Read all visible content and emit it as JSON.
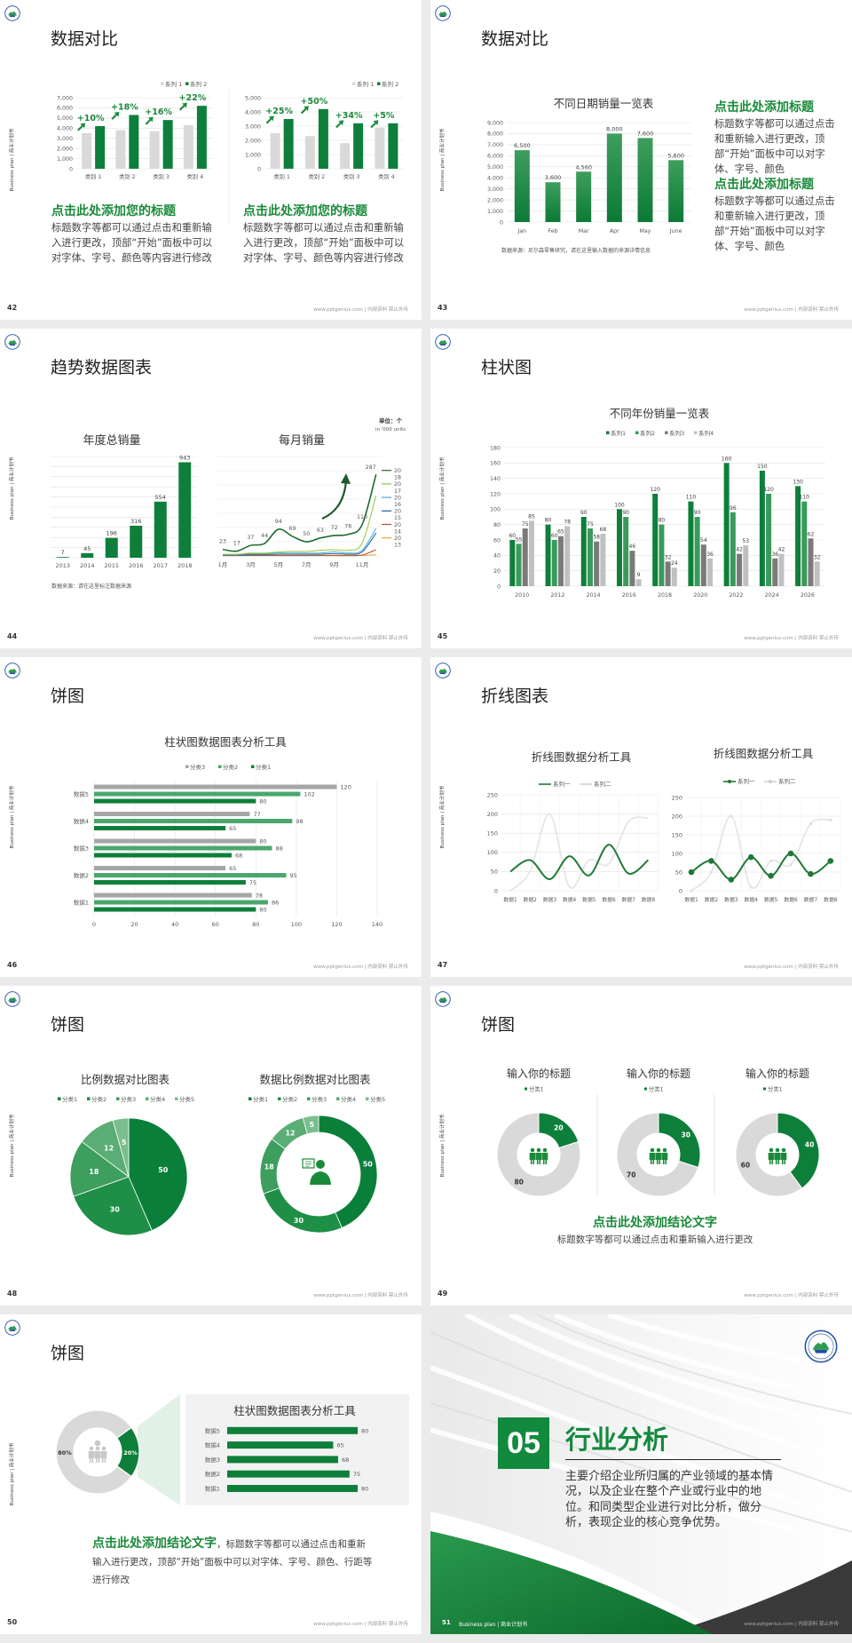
{
  "common": {
    "side_text": "Business plan | 商业计划书",
    "footer": "www.pptgenius.com | 内部资料 禁止外传",
    "accent": "#0e7f3a",
    "gray": "#d3d3d3"
  },
  "slides": [
    {
      "page": "42",
      "title": "数据对比",
      "blocks": [
        {
          "heading": "点击此处添加您的标题",
          "body": "标题数字等都可以通过点击和重新输入进行更改，顶部“开始”面板中可以对字体、字号、颜色等内容进行修改"
        },
        {
          "heading": "点击此处添加您的标题",
          "body": "标题数字等都可以通过点击和重新输入进行更改，顶部“开始”面板中可以对字体、字号、颜色等内容进行修改"
        }
      ]
    },
    {
      "page": "43",
      "title": "数据对比",
      "source": "数据来源：尼尔森零售研究，请在这里输入数据的来源详情信息",
      "blocks": [
        {
          "heading": "点击此处添加标题",
          "body": "标题数字等都可以通过点击和重新输入进行更改，顶部“开始”面板中可以对字体、字号、颜色"
        },
        {
          "heading": "点击此处添加标题",
          "body": "标题数字等都可以通过点击和重新输入进行更改，顶部“开始”面板中可以对字体、字号、颜色"
        }
      ]
    },
    {
      "page": "44",
      "title": "趋势数据图表",
      "source": "数据来源：请在这里标注数据来源",
      "unit": "单位：个",
      "unit_sub": "in '000 units"
    },
    {
      "page": "45",
      "title": "柱状图"
    },
    {
      "page": "46",
      "title": "饼图"
    },
    {
      "page": "47",
      "title": "折线图表"
    },
    {
      "page": "48",
      "title": "饼图"
    },
    {
      "page": "49",
      "title": "饼图",
      "conclusion_heading": "点击此处添加结论文字",
      "conclusion_body": "标题数字等都可以通过点击和重新输入进行更改"
    },
    {
      "page": "50",
      "title": "饼图",
      "conclusion_heading": "点击此处添加结论文字",
      "conclusion_body": "，标题数字等都可以通过点击和重新输入进行更改，顶部“开始”面板中可以对字体、字号、颜色、行距等进行修改"
    },
    {
      "page": "51",
      "section_number": "05",
      "title": "行业分析",
      "body": "主要介绍企业所归属的产业领域的基本情况，以及企业在整个产业或行业中的地位。和同类型企业进行对比分析，做分析，表现企业的核心竞争优势。",
      "footer_left": "Business plan | 商业计划书"
    }
  ],
  "chart_data": [
    {
      "type": "bar",
      "categories": [
        "类别 1",
        "类别 2",
        "类别 3",
        "类别 4"
      ],
      "series": [
        {
          "name": "系列 1",
          "color": "#d9d9d9",
          "values": [
            3500,
            3800,
            3700,
            4300
          ]
        },
        {
          "name": "系列 2",
          "color": "#0e7f3a",
          "values": [
            4200,
            5300,
            4800,
            6200
          ]
        }
      ],
      "annotations": [
        "+10%",
        "+18%",
        "+16%",
        "+22%"
      ],
      "ylim": [
        0,
        7000
      ],
      "yticks": [
        0,
        1000,
        2000,
        3000,
        4000,
        5000,
        6000,
        7000
      ],
      "ytick_labels": [
        "0",
        "1,000",
        "2,000",
        "3,000",
        "4,000",
        "5,000",
        "6,000",
        "7,000"
      ],
      "legend": "top-right",
      "grid": true
    },
    {
      "type": "bar",
      "categories": [
        "类别 1",
        "类别 2",
        "类别 3",
        "类别 4"
      ],
      "series": [
        {
          "name": "系列 1",
          "color": "#d9d9d9",
          "values": [
            2500,
            2300,
            1800,
            2900
          ]
        },
        {
          "name": "系列 2",
          "color": "#0e7f3a",
          "values": [
            3500,
            4200,
            3200,
            3200
          ]
        }
      ],
      "annotations": [
        "+25%",
        "+50%",
        "+34%",
        "+5%"
      ],
      "ylim": [
        0,
        5000
      ],
      "yticks": [
        0,
        1000,
        2000,
        3000,
        4000,
        5000
      ],
      "ytick_labels": [
        "0",
        "1,000",
        "2,000",
        "3,000",
        "4,000",
        "5,000"
      ],
      "legend": "top-right",
      "grid": true
    },
    {
      "type": "bar",
      "title": "不同日期销量一览表",
      "categories": [
        "Jan",
        "Feb",
        "Mar",
        "Apr",
        "May",
        "June"
      ],
      "series": [
        {
          "color": "#128a3e",
          "values": [
            6500,
            3600,
            4560,
            8000,
            7600,
            5600
          ]
        }
      ],
      "data_labels": [
        "6,500",
        "3,600",
        "4,560",
        "8,000",
        "7,600",
        "5,600"
      ],
      "ylim": [
        0,
        9000
      ],
      "yticks": [
        0,
        1000,
        2000,
        3000,
        4000,
        5000,
        6000,
        7000,
        8000,
        9000
      ],
      "ytick_labels": [
        "0",
        "1,000",
        "2,000",
        "3,000",
        "4,000",
        "5,000",
        "6,000",
        "7,000",
        "8,000",
        "9,000"
      ],
      "grid": true
    },
    {
      "type": "bar",
      "title": "年度总销量",
      "categories": [
        "2013",
        "2014",
        "2015",
        "2016",
        "2017",
        "2018"
      ],
      "series": [
        {
          "color": "#0e7f3a",
          "values": [
            7,
            45,
            196,
            316,
            554,
            943
          ]
        }
      ],
      "ylim": [
        0,
        1000
      ],
      "yticks": [
        0,
        100,
        200,
        300,
        400,
        500,
        600,
        700,
        800,
        900,
        1000
      ],
      "grid": true
    },
    {
      "type": "line",
      "title": "每月销量",
      "x": [
        1,
        2,
        3,
        4,
        5,
        6,
        7,
        8,
        9,
        10,
        11,
        12
      ],
      "x_tick_labels": [
        "1月",
        "3月",
        "5月",
        "7月",
        "9月",
        "11月"
      ],
      "series": [
        {
          "color": "#1e6b30",
          "values": [
            23,
            17,
            37,
            44,
            94,
            69,
            50,
            63,
            72,
            76,
            110,
            287
          ]
        },
        {
          "color": "#8cc63f",
          "values": [
            6,
            6,
            10,
            10,
            14,
            16,
            16,
            20,
            22,
            20,
            45,
            212
          ]
        },
        {
          "color": "#4aa8d8",
          "values": [
            4,
            4,
            8,
            8,
            10,
            10,
            10,
            10,
            14,
            10,
            20,
            97
          ]
        },
        {
          "color": "#1f5fa0",
          "values": [
            3,
            3,
            5,
            5,
            6,
            6,
            6,
            6,
            8,
            6,
            14,
            81
          ]
        },
        {
          "color": "#b5522a",
          "values": [
            1,
            1,
            1,
            1,
            1,
            1,
            1,
            1,
            1,
            1,
            3,
            22
          ]
        },
        {
          "color": "#f2a33a",
          "values": [
            2,
            2,
            2,
            2,
            2,
            2,
            2,
            2,
            2,
            2,
            2,
            4
          ]
        }
      ],
      "end_labels": [
        "20",
        "18",
        "20",
        "17",
        "20",
        "16",
        "20",
        "15",
        "20",
        "14",
        "20",
        "13"
      ],
      "ylim": [
        0,
        350
      ],
      "yticks": [
        0,
        50,
        100,
        150,
        200,
        250,
        300,
        350
      ],
      "grid": true
    },
    {
      "type": "bar",
      "title": "不同年份销量一览表",
      "categories": [
        "2010",
        "2012",
        "2014",
        "2016",
        "2018",
        "2020",
        "2022",
        "2024",
        "2026"
      ],
      "series": [
        {
          "name": "系列1",
          "color": "#0e7f3a",
          "values": [
            60,
            80,
            90,
            100,
            120,
            110,
            160,
            150,
            130
          ]
        },
        {
          "name": "系列2",
          "color": "#3a9a5c",
          "values": [
            55,
            60,
            75,
            90,
            80,
            90,
            96,
            120,
            110
          ]
        },
        {
          "name": "系列3",
          "color": "#7a7a7a",
          "values": [
            75,
            65,
            58,
            46,
            32,
            54,
            42,
            36,
            62
          ]
        },
        {
          "name": "系列4",
          "color": "#c0c0c0",
          "values": [
            85,
            78,
            68,
            9,
            24,
            36,
            53,
            42,
            32
          ]
        }
      ],
      "ylim": [
        0,
        180
      ],
      "yticks": [
        0,
        20,
        40,
        60,
        80,
        100,
        120,
        140,
        160,
        180
      ],
      "ytick_labels": [
        "0",
        "20",
        "40",
        "60",
        "80",
        "100",
        "120",
        "140",
        "160",
        "180"
      ],
      "legend": "top",
      "grid": true
    },
    {
      "type": "bar",
      "orientation": "horizontal",
      "title": "柱状图数据图表分析工具",
      "categories": [
        "数据1",
        "数据2",
        "数据3",
        "数据4",
        "数据5"
      ],
      "series": [
        {
          "name": "分类3",
          "color": "#a6a6a6",
          "values": [
            78,
            65,
            80,
            77,
            120
          ]
        },
        {
          "name": "分类2",
          "color": "#4aa76c",
          "values": [
            86,
            95,
            88,
            98,
            102
          ]
        },
        {
          "name": "分类1",
          "color": "#0e7f3a",
          "values": [
            80,
            75,
            68,
            65,
            80
          ]
        }
      ],
      "xlim": [
        0,
        140
      ],
      "xticks": [
        0,
        20,
        40,
        60,
        80,
        100,
        120,
        140
      ],
      "xtick_labels": [
        "0",
        "20",
        "40",
        "60",
        "80",
        "100",
        "120",
        "140"
      ],
      "legend": "top",
      "grid": true
    },
    {
      "type": "line",
      "title": "折线图数据分析工具",
      "categories": [
        "数据1",
        "数据2",
        "数据3",
        "数据4",
        "数据5",
        "数据6",
        "数据7",
        "数据8"
      ],
      "series": [
        {
          "name": "系列一",
          "color": "#1e7a36",
          "values": [
            50,
            80,
            30,
            90,
            40,
            120,
            45,
            80
          ]
        },
        {
          "name": "系列二",
          "color": "#e3e3e3",
          "values": [
            0,
            50,
            200,
            10,
            80,
            70,
            180,
            190
          ]
        }
      ],
      "ylim": [
        0,
        250
      ],
      "yticks": [
        0,
        50,
        100,
        150,
        200,
        250
      ],
      "ytick_labels": [
        "0",
        "50",
        "100",
        "150",
        "200",
        "250"
      ],
      "legend": "top",
      "grid": true
    },
    {
      "type": "line",
      "title": "折线图数据分析工具",
      "markers": true,
      "categories": [
        "数据1",
        "数据2",
        "数据3",
        "数据4",
        "数据5",
        "数据6",
        "数据7",
        "数据8"
      ],
      "series": [
        {
          "name": "系列一",
          "color": "#1e7a36",
          "values": [
            50,
            80,
            30,
            90,
            40,
            100,
            45,
            80
          ]
        },
        {
          "name": "系列二",
          "color": "#e3e3e3",
          "values": [
            0,
            50,
            200,
            10,
            80,
            70,
            180,
            190
          ]
        }
      ],
      "ylim": [
        0,
        250
      ],
      "yticks": [
        0,
        50,
        100,
        150,
        200,
        250
      ],
      "ytick_labels": [
        "0",
        "50",
        "100",
        "150",
        "200",
        "250"
      ],
      "legend": "top",
      "grid": true
    },
    {
      "type": "pie",
      "title": "比例数据对比图表",
      "categories": [
        "分类1",
        "分类2",
        "分类3",
        "分类4",
        "分类5"
      ],
      "values": [
        50,
        30,
        18,
        12,
        5
      ],
      "colors": [
        "#0a7f3a",
        "#1f8f48",
        "#3d9e5d",
        "#5aad74",
        "#7bbd8d"
      ],
      "legend": "top"
    },
    {
      "type": "pie",
      "donut": true,
      "title": "数据比例数据对比图表",
      "categories": [
        "分类1",
        "分类2",
        "分类3",
        "分类4",
        "分类5"
      ],
      "values": [
        50,
        30,
        18,
        12,
        5
      ],
      "colors": [
        "#0a7f3a",
        "#1f8f48",
        "#3d9e5d",
        "#5aad74",
        "#7bbd8d"
      ],
      "legend": "top",
      "center_icon": "user-chat-icon"
    },
    {
      "type": "pie",
      "donut": true,
      "title": "输入你的标题",
      "legend_label": "分类1",
      "values": [
        20,
        80
      ],
      "colors": [
        "#0e7f3a",
        "#d9d9d9"
      ],
      "center_icon": "people-icon"
    },
    {
      "type": "pie",
      "donut": true,
      "title": "输入你的标题",
      "legend_label": "分类1",
      "values": [
        30,
        70
      ],
      "colors": [
        "#0e7f3a",
        "#d9d9d9"
      ],
      "center_icon": "people-icon"
    },
    {
      "type": "pie",
      "donut": true,
      "title": "输入你的标题",
      "legend_label": "分类1",
      "values": [
        40,
        60
      ],
      "colors": [
        "#0e7f3a",
        "#d9d9d9"
      ],
      "center_icon": "people-icon"
    },
    {
      "type": "pie",
      "donut": true,
      "values": [
        20,
        80
      ],
      "labels": [
        "20%",
        "80%"
      ],
      "colors": [
        "#0e7f3a",
        "#d9d9d9"
      ],
      "center_icon": "team-icon"
    },
    {
      "type": "bar",
      "orientation": "horizontal",
      "title": "柱状图数据图表分析工具",
      "categories": [
        "数据1",
        "数据2",
        "数据3",
        "数据4",
        "数据5"
      ],
      "series": [
        {
          "color": "#0e7f3a",
          "values": [
            80,
            75,
            68,
            65,
            80
          ]
        }
      ],
      "xlim": [
        0,
        80
      ]
    }
  ]
}
